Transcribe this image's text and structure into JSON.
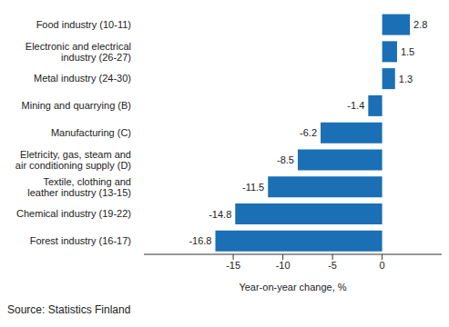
{
  "chart_data": {
    "type": "bar",
    "orientation": "horizontal",
    "categories": [
      "Food industry (10-11)",
      "Electronic and electrical industry (26-27)",
      "Metal industry (24-30)",
      "Mining and quarrying (B)",
      "Manufacturing (C)",
      "Eletricity, gas, steam and air conditioning supply (D)",
      "Textile, clothing and leather industry (13-15)",
      "Chemical industry (19-22)",
      "Forest industry (16-17)"
    ],
    "values": [
      2.8,
      1.5,
      1.3,
      -1.4,
      -6.2,
      -8.5,
      -11.5,
      -14.8,
      -16.8
    ],
    "color": "#1a6fb5",
    "x_label": "Year-on-year change, %",
    "xlim": [
      -24,
      6
    ],
    "xticks": [
      -15,
      -10,
      -5,
      0
    ],
    "grid": false,
    "data_labels": true,
    "annotations": [
      "Source: Statistics Finland"
    ]
  }
}
